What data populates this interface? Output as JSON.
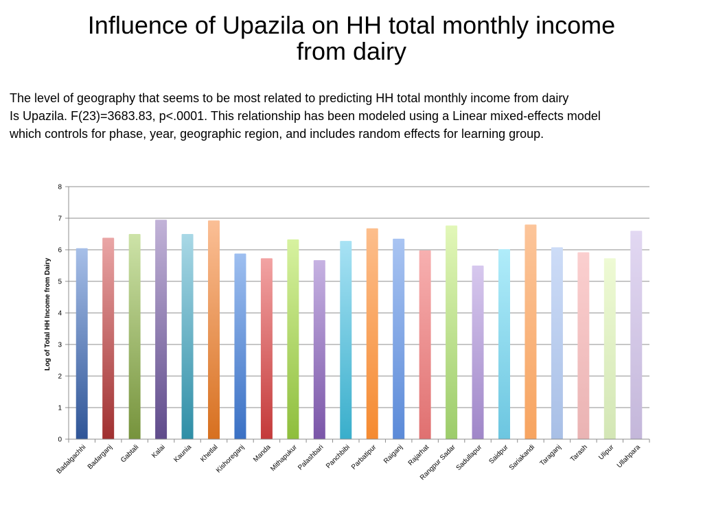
{
  "slide": {
    "title_line1": "Influence of Upazila on HH total monthly income",
    "title_line2": "from dairy",
    "body_line1": "The level of geography that seems to be most related to predicting HH total monthly income from dairy",
    "body_line2": "Is Upazila.  F(23)=3683.83, p<.0001. This relationship has been modeled using a Linear mixed-effects model",
    "body_line3": "which controls for phase, year, geographic region, and includes random effects for learning group."
  },
  "chart_data": {
    "type": "bar",
    "title": "",
    "xlabel": "",
    "ylabel": "Log of Total HH Income from Dairy",
    "ylim": [
      0,
      8
    ],
    "yticks": [
      0,
      1,
      2,
      3,
      4,
      5,
      6,
      7,
      8
    ],
    "grid": true,
    "legend": "none",
    "categories": [
      "Badalgachhi",
      "Badarganj",
      "Gabtali",
      "Kalai",
      "Kaunia",
      "Khetlal",
      "Kishoreganj",
      "Manda",
      "Mithapukur",
      "Palashbari",
      "Panchbibi",
      "Parbatipur",
      "Raiganj",
      "Rajarhat",
      "Rangpur Sadar",
      "Sadullapur",
      "Saidpur",
      "Sariakandi",
      "Taraganj",
      "Tarash",
      "Ulipur",
      "Ullahpara"
    ],
    "values": [
      6.05,
      6.38,
      6.5,
      6.95,
      6.5,
      6.93,
      5.88,
      5.73,
      6.33,
      5.67,
      6.28,
      6.68,
      6.35,
      5.98,
      6.77,
      5.5,
      6.02,
      6.8,
      6.08,
      5.92,
      5.73,
      6.6
    ],
    "colors": [
      [
        "#a7bfe8",
        "#2f5597"
      ],
      [
        "#eaa6a6",
        "#a03030"
      ],
      [
        "#cde3a8",
        "#76933c"
      ],
      [
        "#c2b3d8",
        "#5f4b8b"
      ],
      [
        "#a9d8e6",
        "#2e8ea6"
      ],
      [
        "#fbbf96",
        "#d7701f"
      ],
      [
        "#9ebff0",
        "#3a70c4"
      ],
      [
        "#f2a3a3",
        "#c43a3a"
      ],
      [
        "#d7f2a0",
        "#8ebe3c"
      ],
      [
        "#c6b2e2",
        "#7a55a8"
      ],
      [
        "#a8e2f4",
        "#39aecb"
      ],
      [
        "#fdbe8c",
        "#f58a30"
      ],
      [
        "#a9c4f2",
        "#5b8ad8"
      ],
      [
        "#f7b0b0",
        "#e07070"
      ],
      [
        "#e2f7b8",
        "#9ccc6a"
      ],
      [
        "#d7c8ee",
        "#9f86c8"
      ],
      [
        "#b0ecfa",
        "#6cc6e0"
      ],
      [
        "#fcc59a",
        "#f7a460"
      ],
      [
        "#cddcf7",
        "#a8bfe6"
      ],
      [
        "#fbcfcf",
        "#eab3b3"
      ],
      [
        "#eefad4",
        "#d3e6b5"
      ],
      [
        "#e2d8f2",
        "#c4b7da"
      ]
    ]
  }
}
